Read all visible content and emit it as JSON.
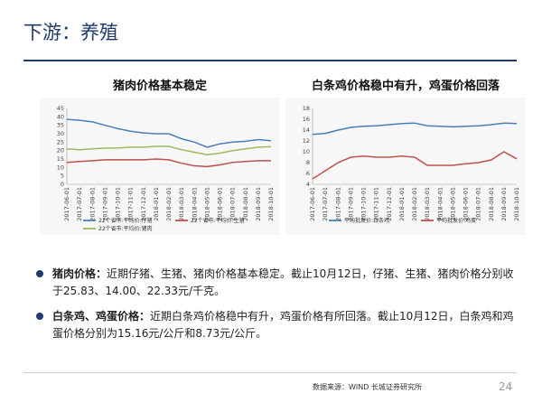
{
  "page_title": "下游：养殖",
  "chart_data": [
    {
      "type": "line",
      "title": "猪肉价格基本稳定",
      "x": [
        "2017-06-01",
        "2017-07-01",
        "2017-08-01",
        "2017-09-01",
        "2017-10-01",
        "2017-11-01",
        "2017-12-01",
        "2018-01-01",
        "2018-02-01",
        "2018-03-01",
        "2018-04-01",
        "2018-05-01",
        "2018-06-01",
        "2018-07-01",
        "2018-08-01",
        "2018-09-01",
        "2018-10-01"
      ],
      "ylim": [
        0,
        45
      ],
      "yticks": [
        0,
        5,
        10,
        15,
        20,
        25,
        30,
        35,
        40,
        45
      ],
      "series": [
        {
          "name": "22个省市:平均价:仔猪",
          "color": "#4a7ebb",
          "values": [
            38.5,
            38,
            37,
            35,
            33,
            31.5,
            30.5,
            30,
            30,
            27,
            25,
            22,
            24,
            25,
            25.5,
            26.5,
            25.8
          ]
        },
        {
          "name": "22个省市:平均价:生猪",
          "color": "#c0504d",
          "values": [
            13,
            13.5,
            14,
            14.5,
            14.5,
            14.5,
            14.5,
            15,
            14.5,
            12.5,
            11,
            10.5,
            11.5,
            13,
            13.5,
            14,
            14
          ]
        },
        {
          "name": "22个省市:平均价:猪肉",
          "color": "#9bbb59",
          "values": [
            21,
            20.5,
            21,
            21.5,
            21.5,
            22,
            22,
            22.5,
            22.5,
            20.5,
            19,
            17.5,
            18.5,
            20,
            21,
            22,
            22.3
          ]
        }
      ]
    },
    {
      "type": "line",
      "title": "白条鸡价格稳中有升，鸡蛋价格回落",
      "x": [
        "2017-06-01",
        "2017-07-01",
        "2017-08-01",
        "2017-09-01",
        "2017-10-01",
        "2017-11-01",
        "2017-12-01",
        "2018-01-01",
        "2018-02-01",
        "2018-03-01",
        "2018-04-01",
        "2018-05-01",
        "2018-06-01",
        "2018-07-01",
        "2018-08-01",
        "2018-09-01",
        "2018-10-01"
      ],
      "ylim": [
        4,
        18
      ],
      "yticks": [
        4,
        6,
        8,
        10,
        12,
        14,
        16,
        18
      ],
      "series": [
        {
          "name": "平均批发价:白条鸡",
          "color": "#4a7ebb",
          "values": [
            13.2,
            13.4,
            14,
            14.5,
            14.7,
            14.8,
            15,
            15.2,
            15.3,
            14.8,
            14.7,
            14.6,
            14.7,
            14.8,
            15,
            15.3,
            15.2
          ]
        },
        {
          "name": "平均批发价:鸡蛋",
          "color": "#c0504d",
          "values": [
            5,
            6.5,
            8,
            9,
            9.2,
            9,
            9,
            9.2,
            9,
            7.5,
            7.5,
            7.5,
            7.8,
            8,
            8.5,
            10,
            8.7
          ]
        }
      ]
    }
  ],
  "bullets": [
    {
      "head": "猪肉价格：",
      "text": "近期仔猪、生猪、猪肉价格基本稳定。截止10月12日，仔猪、生猪、猪肉价格分别收于25.83、14.00、22.33元/千克。"
    },
    {
      "head": "白条鸡、鸡蛋价格：",
      "text": "近期白条鸡价格稳中有升，鸡蛋价格有所回落。截止10月12日，白条鸡和鸡蛋价格分别为15.16元/公斤和8.73元/公斤。"
    }
  ],
  "source": "数据来源：WIND 长城证券研究所",
  "page_number": "24"
}
